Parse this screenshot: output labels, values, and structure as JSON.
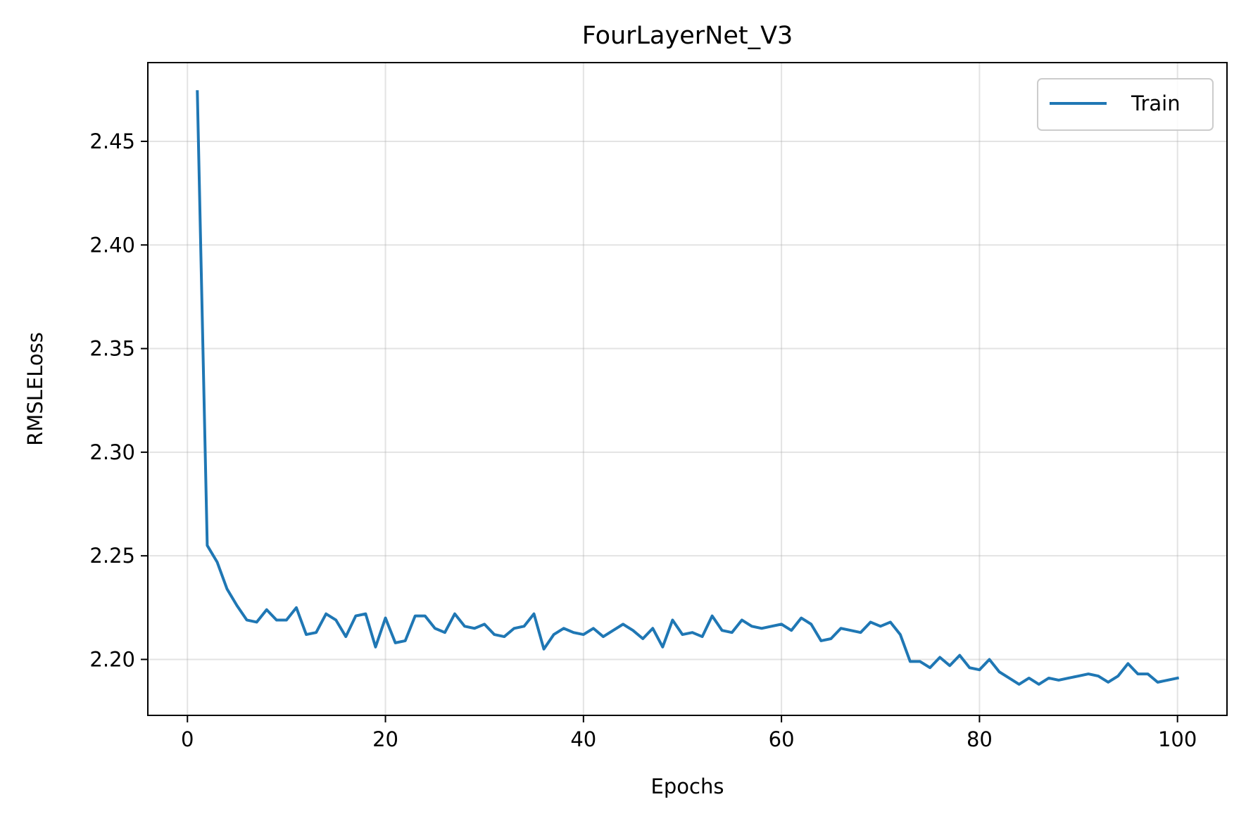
{
  "chart_data": {
    "type": "line",
    "title": "FourLayerNet_V3",
    "xlabel": "Epochs",
    "ylabel": "RMSLELoss",
    "xlim": [
      -4,
      105
    ],
    "ylim": [
      2.173,
      2.488
    ],
    "xticks": [
      0,
      20,
      40,
      60,
      80,
      100
    ],
    "yticks": [
      2.2,
      2.25,
      2.3,
      2.35,
      2.4,
      2.45
    ],
    "xtick_labels": [
      "0",
      "20",
      "40",
      "60",
      "80",
      "100"
    ],
    "ytick_labels": [
      "2.20",
      "2.25",
      "2.30",
      "2.35",
      "2.40",
      "2.45"
    ],
    "grid": true,
    "legend_position": "top-right",
    "series": [
      {
        "name": "Train",
        "color": "#1f77b4",
        "x": [
          1,
          2,
          3,
          4,
          5,
          6,
          7,
          8,
          9,
          10,
          11,
          12,
          13,
          14,
          15,
          16,
          17,
          18,
          19,
          20,
          21,
          22,
          23,
          24,
          25,
          26,
          27,
          28,
          29,
          30,
          31,
          32,
          33,
          34,
          35,
          36,
          37,
          38,
          39,
          40,
          41,
          42,
          43,
          44,
          45,
          46,
          47,
          48,
          49,
          50,
          51,
          52,
          53,
          54,
          55,
          56,
          57,
          58,
          59,
          60,
          61,
          62,
          63,
          64,
          65,
          66,
          67,
          68,
          69,
          70,
          71,
          72,
          73,
          74,
          75,
          76,
          77,
          78,
          79,
          80,
          81,
          82,
          83,
          84,
          85,
          86,
          87,
          88,
          89,
          90,
          91,
          92,
          93,
          94,
          95,
          96,
          97,
          98,
          99,
          100
        ],
        "y": [
          2.474,
          2.255,
          2.247,
          2.234,
          2.226,
          2.219,
          2.218,
          2.224,
          2.219,
          2.219,
          2.225,
          2.212,
          2.213,
          2.222,
          2.219,
          2.211,
          2.221,
          2.222,
          2.206,
          2.22,
          2.208,
          2.209,
          2.221,
          2.221,
          2.215,
          2.213,
          2.222,
          2.216,
          2.215,
          2.217,
          2.212,
          2.211,
          2.215,
          2.216,
          2.222,
          2.205,
          2.212,
          2.215,
          2.213,
          2.212,
          2.215,
          2.211,
          2.214,
          2.217,
          2.214,
          2.21,
          2.215,
          2.206,
          2.219,
          2.212,
          2.213,
          2.211,
          2.221,
          2.214,
          2.213,
          2.219,
          2.216,
          2.215,
          2.216,
          2.217,
          2.214,
          2.22,
          2.217,
          2.209,
          2.21,
          2.215,
          2.214,
          2.213,
          2.218,
          2.216,
          2.218,
          2.212,
          2.199,
          2.199,
          2.196,
          2.201,
          2.197,
          2.202,
          2.196,
          2.195,
          2.2,
          2.194,
          2.191,
          2.188,
          2.191,
          2.188,
          2.191,
          2.19,
          2.191,
          2.192,
          2.193,
          2.192,
          2.189,
          2.192,
          2.198,
          2.193,
          2.193,
          2.189,
          2.19,
          2.191
        ]
      }
    ]
  }
}
